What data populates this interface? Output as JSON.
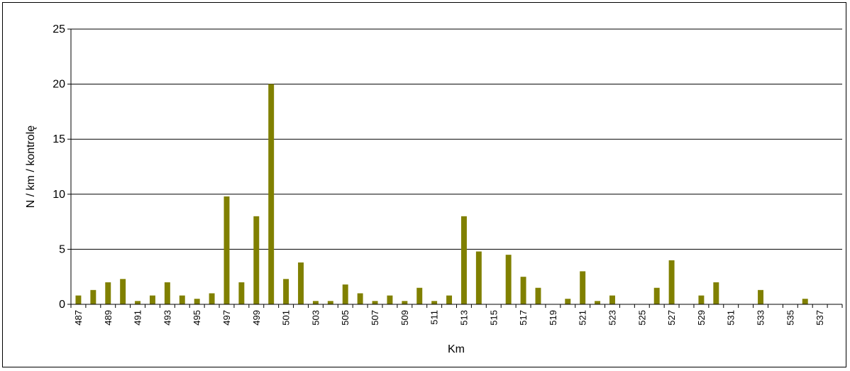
{
  "chart_data": {
    "type": "bar",
    "title": "",
    "xlabel": "Km",
    "ylabel": "N / km / kontrolę",
    "ylim": [
      0,
      25
    ],
    "yticks": [
      0,
      5,
      10,
      15,
      20,
      25
    ],
    "grid": true,
    "legend": "none",
    "bar_color": "#808000",
    "categories": [
      "487",
      "488",
      "489",
      "490",
      "491",
      "492",
      "493",
      "494",
      "495",
      "496",
      "497",
      "498",
      "499",
      "500",
      "501",
      "502",
      "503",
      "504",
      "505",
      "506",
      "507",
      "508",
      "509",
      "510",
      "511",
      "512",
      "513",
      "514",
      "515",
      "516",
      "517",
      "518",
      "519",
      "520",
      "521",
      "522",
      "523",
      "524",
      "525",
      "526",
      "527",
      "528",
      "529",
      "530",
      "531",
      "532",
      "533",
      "534",
      "535",
      "536",
      "537",
      "538"
    ],
    "tick_labels": [
      "487",
      "",
      "489",
      "",
      "491",
      "",
      "493",
      "",
      "495",
      "",
      "497",
      "",
      "499",
      "",
      "501",
      "",
      "503",
      "",
      "505",
      "",
      "507",
      "",
      "509",
      "",
      "511",
      "",
      "513",
      "",
      "515",
      "",
      "517",
      "",
      "519",
      "",
      "521",
      "",
      "523",
      "",
      "525",
      "",
      "527",
      "",
      "529",
      "",
      "531",
      "",
      "533",
      "",
      "535",
      "",
      "537",
      ""
    ],
    "values": [
      0.8,
      1.3,
      2,
      2.3,
      0.3,
      0.8,
      2,
      0.8,
      0.5,
      1,
      9.8,
      2,
      8,
      20,
      2.3,
      3.8,
      0.3,
      0.3,
      1.8,
      1,
      0.3,
      0.8,
      0.3,
      1.5,
      0.3,
      0.8,
      8,
      4.8,
      0,
      4.5,
      2.5,
      1.5,
      0,
      0.5,
      3,
      0.3,
      0.8,
      0,
      0,
      1.5,
      4,
      0,
      0.8,
      2,
      0,
      0,
      1.3,
      0,
      0,
      0.5,
      0,
      0
    ]
  }
}
